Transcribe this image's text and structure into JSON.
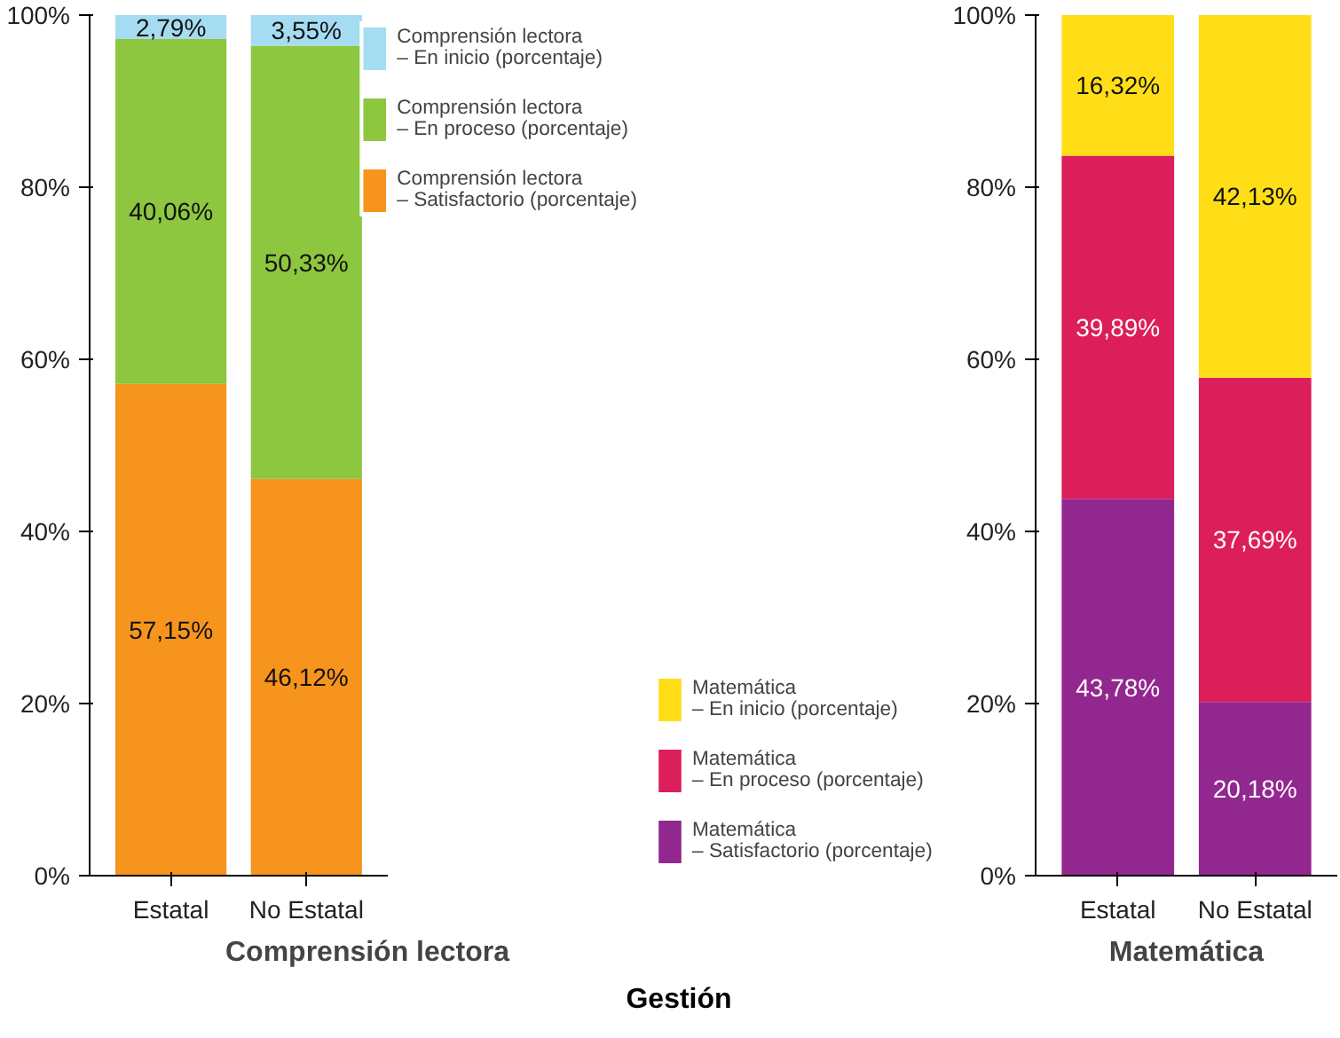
{
  "chart_data": [
    {
      "type": "bar",
      "stacked": true,
      "xlabel": "Comprensión lectora",
      "categories": [
        "Estatal",
        "No Estatal"
      ],
      "ylim": [
        0,
        100
      ],
      "yticks": [
        {
          "value": 0,
          "label": "0%"
        },
        {
          "value": 20,
          "label": "20%"
        },
        {
          "value": 40,
          "label": "40%"
        },
        {
          "value": 60,
          "label": "60%"
        },
        {
          "value": 80,
          "label": "80%"
        },
        {
          "value": 100,
          "label": "100%"
        }
      ],
      "grid": false,
      "legend": "top right",
      "series": [
        {
          "name": "Comprensión lectora\n– Satisfactorio (porcentaje)",
          "color": "#f7941d",
          "values": [
            57.15,
            46.12
          ],
          "value_labels": [
            "57,15%",
            "46,12%"
          ]
        },
        {
          "name": "Comprensión lectora\n– En proceso (porcentaje)",
          "color": "#8dc63f",
          "values": [
            40.06,
            50.33
          ],
          "value_labels": [
            "40,06%",
            "50,33%"
          ]
        },
        {
          "name": "Comprensión lectora\n– En inicio (porcentaje)",
          "color": "#a6dcf2",
          "values": [
            2.79,
            3.55
          ],
          "value_labels": [
            "2,79%",
            "3,55%"
          ]
        }
      ]
    },
    {
      "type": "bar",
      "stacked": true,
      "xlabel": "Matemática",
      "categories": [
        "Estatal",
        "No Estatal"
      ],
      "ylim": [
        0,
        100
      ],
      "yticks": [
        {
          "value": 0,
          "label": "0%"
        },
        {
          "value": 20,
          "label": "20%"
        },
        {
          "value": 40,
          "label": "40%"
        },
        {
          "value": 60,
          "label": "60%"
        },
        {
          "value": 80,
          "label": "80%"
        },
        {
          "value": 100,
          "label": "100%"
        }
      ],
      "grid": false,
      "legend": "bottom left",
      "annotations": [
        "Gestión"
      ],
      "series": [
        {
          "name": "Matemática\n– Satisfactorio (porcentaje)",
          "color": "#92278f",
          "values": [
            43.78,
            20.18
          ],
          "value_labels": [
            "43,78%",
            "20,18%"
          ]
        },
        {
          "name": "Matemática\n– En proceso (porcentaje)",
          "color": "#dc1e5a",
          "values": [
            39.89,
            37.69
          ],
          "value_labels": [
            "39,89%",
            "37,69%"
          ]
        },
        {
          "name": "Matemática\n– En inicio (porcentaje)",
          "color": "#ffde17",
          "values": [
            16.32,
            42.13
          ],
          "value_labels": [
            "16,32%",
            "42,13%"
          ]
        }
      ]
    }
  ]
}
